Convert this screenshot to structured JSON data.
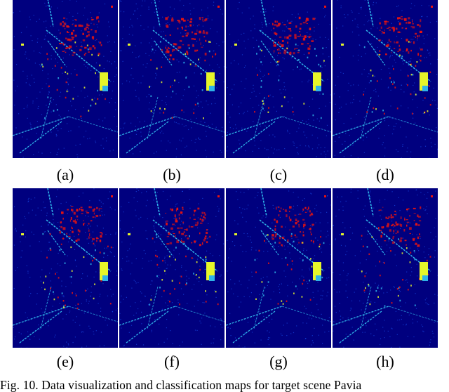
{
  "figure": {
    "panels": [
      {
        "label": "(a)"
      },
      {
        "label": "(b)"
      },
      {
        "label": "(c)"
      },
      {
        "label": "(d)"
      },
      {
        "label": "(e)"
      },
      {
        "label": "(f)"
      },
      {
        "label": "(g)"
      },
      {
        "label": "(h)"
      }
    ],
    "caption": "Fig. 10.   Data visualization and classification maps for target scene Pavia"
  },
  "colors": {
    "background_class": "#00007f",
    "cyan_class": "#2fb3e8",
    "yellow_class": "#e6f52a",
    "red_class": "#e8130f",
    "blue_class": "#1e5cff"
  }
}
